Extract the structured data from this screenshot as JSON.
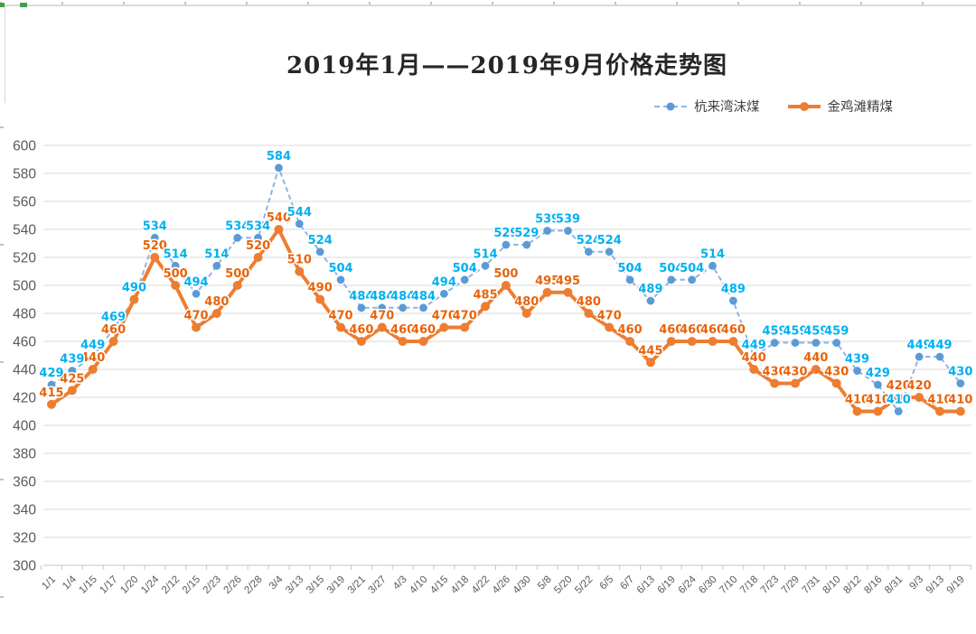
{
  "chart_data": {
    "type": "line",
    "title": "2019年1月——2019年9月价格走势图",
    "categories": [
      "1/1",
      "1/4",
      "1/15",
      "1/17",
      "1/20",
      "1/24",
      "2/12",
      "2/15",
      "2/23",
      "2/26",
      "2/28",
      "3/4",
      "3/13",
      "3/15",
      "3/19",
      "3/21",
      "3/27",
      "4/3",
      "4/10",
      "4/15",
      "4/18",
      "4/22",
      "4/26",
      "4/30",
      "5/8",
      "5/20",
      "5/22",
      "6/5",
      "6/7",
      "6/13",
      "6/19",
      "6/24",
      "6/30",
      "7/10",
      "7/18",
      "7/23",
      "7/29",
      "7/31",
      "8/10",
      "8/12",
      "8/16",
      "8/31",
      "9/3",
      "9/13",
      "9/19"
    ],
    "series": [
      {
        "name": "杭来湾沫煤",
        "style": "dashed",
        "line_color": "#8FB4E3",
        "point_color": "#5B9BD5",
        "label_color": "#00B0F0",
        "values": [
          429,
          439,
          449,
          469,
          490,
          534,
          514,
          494,
          514,
          534,
          534,
          584,
          544,
          524,
          504,
          484,
          484,
          484,
          484,
          494,
          504,
          514,
          529,
          529,
          539,
          539,
          524,
          524,
          504,
          489,
          504,
          504,
          514,
          489,
          449,
          459,
          459,
          459,
          459,
          439,
          429,
          410,
          449,
          449,
          430
        ]
      },
      {
        "name": "金鸡滩精煤",
        "style": "solid",
        "line_color": "#ED7D31",
        "point_color": "#ED7D31",
        "label_color": "#E8630A",
        "values": [
          415,
          425,
          440,
          460,
          490,
          520,
          500,
          470,
          480,
          500,
          520,
          540,
          510,
          490,
          470,
          460,
          470,
          460,
          460,
          470,
          470,
          485,
          500,
          480,
          495,
          495,
          480,
          470,
          460,
          445,
          460,
          460,
          460,
          460,
          440,
          430,
          430,
          440,
          430,
          410,
          410,
          420,
          420,
          410,
          410
        ]
      }
    ],
    "ylim": [
      300,
      600
    ],
    "ytick_step": 20,
    "grid": true,
    "legend_position": "top-right",
    "axis_label_color": "#595959",
    "gridline_color": "#d9d9d9",
    "axisline_color": "#c6c6c6"
  }
}
